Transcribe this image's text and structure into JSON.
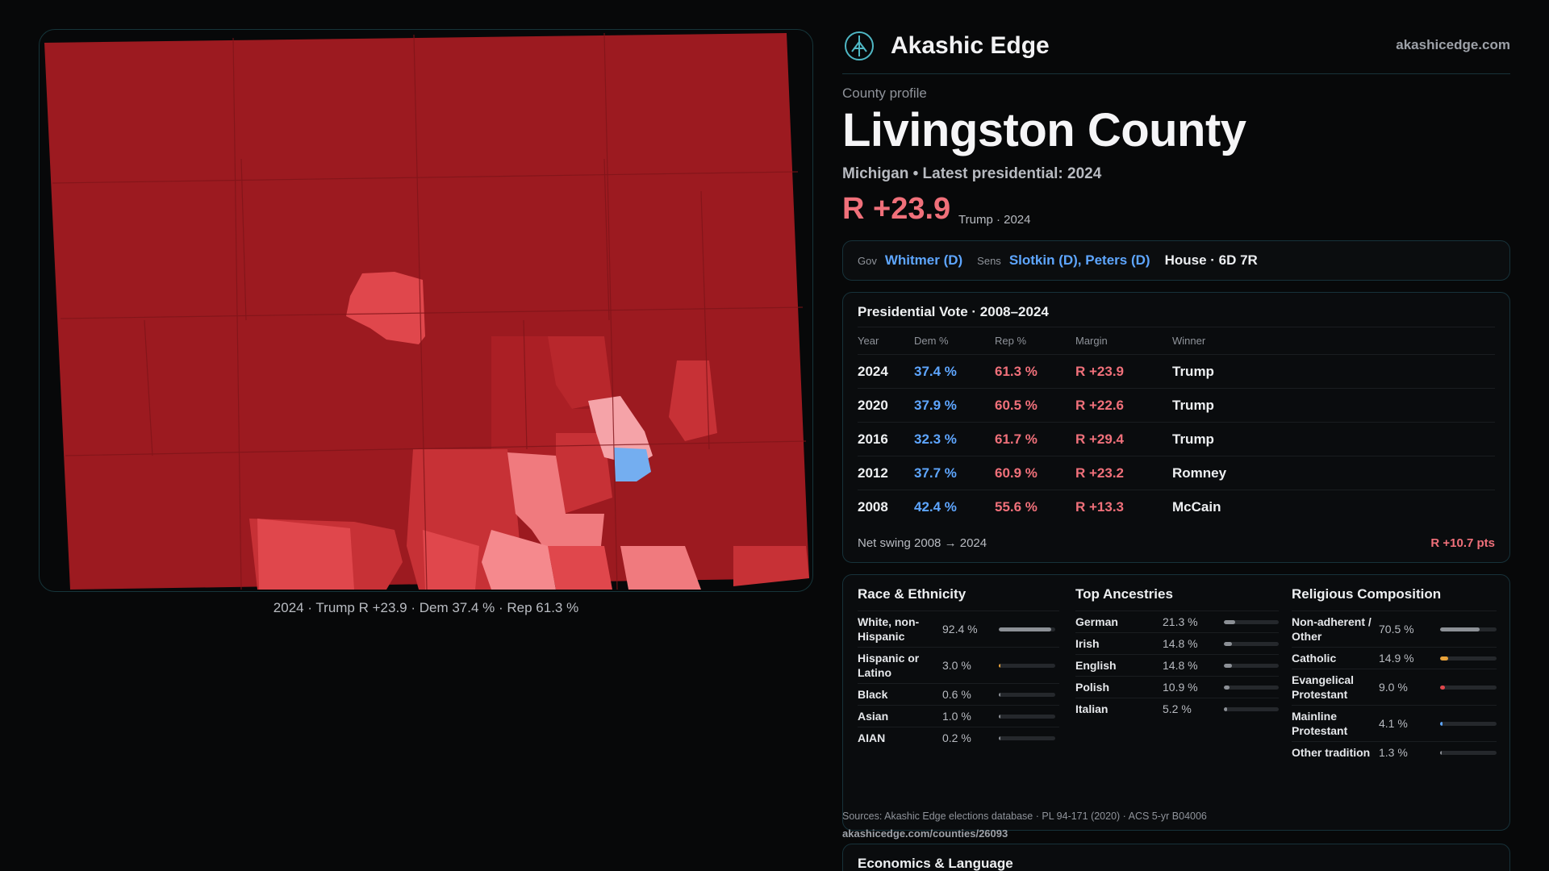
{
  "brand": {
    "name": "Akashic Edge",
    "url": "akashicedge.com",
    "logo_icon": "tree-of-life-icon"
  },
  "profile": {
    "eyebrow": "County profile",
    "title": "Livingston County",
    "subtitle": "Michigan • Latest presidential: 2024",
    "margin": "R +23.9",
    "margin_sub": "Trump · 2024"
  },
  "map": {
    "caption": "2024 · Trump R +23.9 · Dem 37.4 % · Rep 61.3 %",
    "colors": {
      "deep_red": "#9c1a20",
      "mid_red": "#c73136",
      "light_red": "#e0474c",
      "pale_red": "#f07a7e",
      "blush": "#f5a3a8",
      "blue": "#74aef0"
    }
  },
  "officials": {
    "gov_label": "Gov",
    "gov": "Whitmer (D)",
    "sens_label": "Sens",
    "sens": "Slotkin (D), Peters (D)",
    "house": "House · 6D 7R"
  },
  "presidential": {
    "title": "Presidential Vote · 2008–2024",
    "headers": {
      "year": "Year",
      "dem": "Dem %",
      "rep": "Rep %",
      "margin": "Margin",
      "winner": "Winner"
    },
    "rows": [
      {
        "year": "2024",
        "dem": "37.4 %",
        "rep": "61.3 %",
        "margin": "R +23.9",
        "winner": "Trump"
      },
      {
        "year": "2020",
        "dem": "37.9 %",
        "rep": "60.5 %",
        "margin": "R +22.6",
        "winner": "Trump"
      },
      {
        "year": "2016",
        "dem": "32.3 %",
        "rep": "61.7 %",
        "margin": "R +29.4",
        "winner": "Trump"
      },
      {
        "year": "2012",
        "dem": "37.7 %",
        "rep": "60.9 %",
        "margin": "R +23.2",
        "winner": "Romney"
      },
      {
        "year": "2008",
        "dem": "42.4 %",
        "rep": "55.6 %",
        "margin": "R +13.3",
        "winner": "McCain"
      }
    ],
    "net_swing_label": "Net swing 2008 → 2024",
    "net_swing_value": "R +10.7 pts"
  },
  "race": {
    "title": "Race & Ethnicity",
    "items": [
      {
        "label": "White, non-Hispanic",
        "value": "92.4 %",
        "fraction": 0.924,
        "color": "#8c9096"
      },
      {
        "label": "Hispanic or Latino",
        "value": "3.0 %",
        "fraction": 0.03,
        "color": "#e8a23a"
      },
      {
        "label": "Black",
        "value": "0.6 %",
        "fraction": 0.006,
        "color": "#8c9096"
      },
      {
        "label": "Asian",
        "value": "1.0 %",
        "fraction": 0.01,
        "color": "#8c9096"
      },
      {
        "label": "AIAN",
        "value": "0.2 %",
        "fraction": 0.002,
        "color": "#8c9096"
      }
    ]
  },
  "ancestry": {
    "title": "Top Ancestries",
    "items": [
      {
        "label": "German",
        "value": "21.3 %",
        "fraction": 0.213,
        "color": "#8c9096"
      },
      {
        "label": "Irish",
        "value": "14.8 %",
        "fraction": 0.148,
        "color": "#8c9096"
      },
      {
        "label": "English",
        "value": "14.8 %",
        "fraction": 0.148,
        "color": "#8c9096"
      },
      {
        "label": "Polish",
        "value": "10.9 %",
        "fraction": 0.109,
        "color": "#8c9096"
      },
      {
        "label": "Italian",
        "value": "5.2 %",
        "fraction": 0.052,
        "color": "#8c9096"
      }
    ]
  },
  "religion": {
    "title": "Religious Composition",
    "items": [
      {
        "label": "Non-adherent / Other",
        "value": "70.5 %",
        "fraction": 0.705,
        "color": "#8c9096"
      },
      {
        "label": "Catholic",
        "value": "14.9 %",
        "fraction": 0.149,
        "color": "#e8a23a"
      },
      {
        "label": "Evangelical Protestant",
        "value": "9.0 %",
        "fraction": 0.09,
        "color": "#e0474c"
      },
      {
        "label": "Mainline Protestant",
        "value": "4.1 %",
        "fraction": 0.041,
        "color": "#5ea6ff"
      },
      {
        "label": "Other tradition",
        "value": "1.3 %",
        "fraction": 0.013,
        "color": "#8c9096"
      }
    ]
  },
  "sources": {
    "text": "Sources: Akashic Edge elections database · PL 94-171 (2020) · ACS 5-yr B04006",
    "url": "akashicedge.com/counties/26093"
  },
  "econ": {
    "title": "Economics & Language"
  }
}
